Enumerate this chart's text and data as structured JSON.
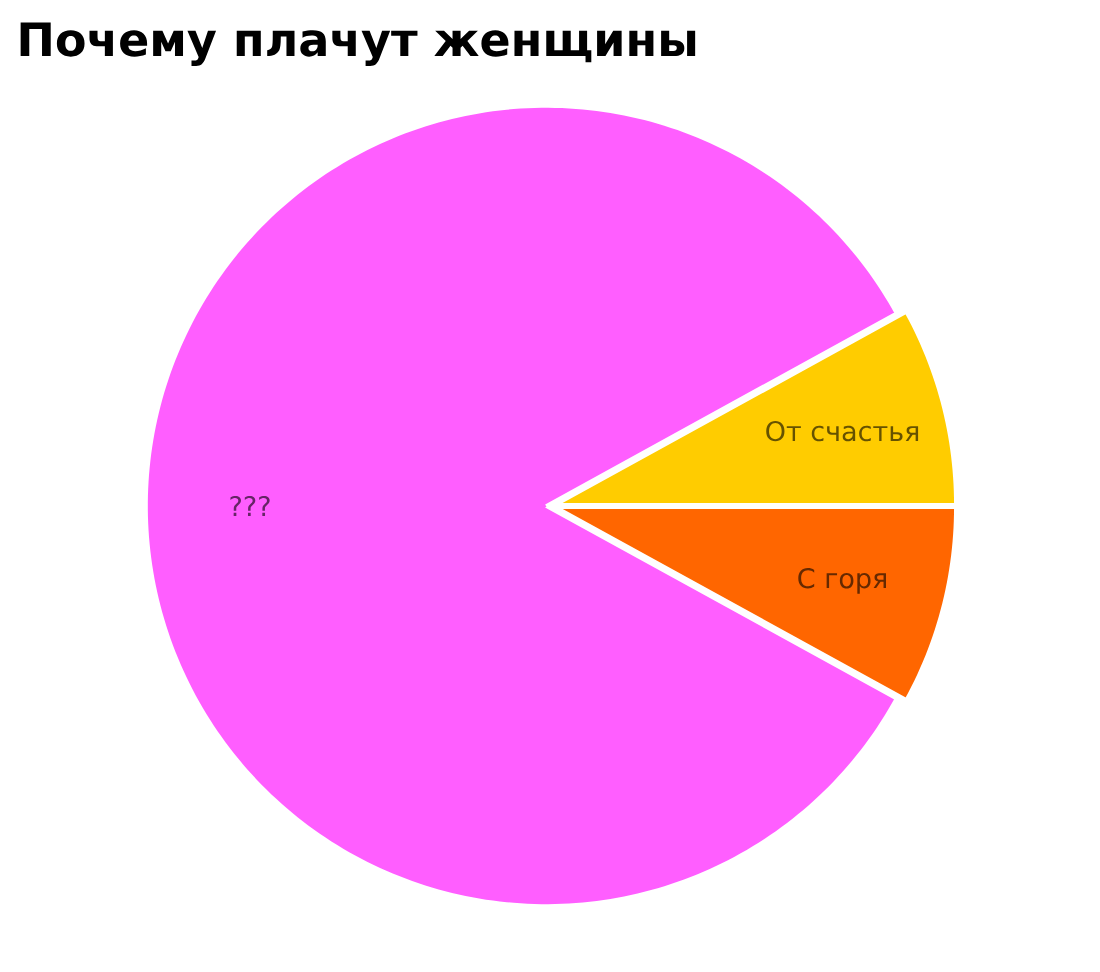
{
  "chart_data": {
    "type": "pie",
    "title": "Почему плачут женщины",
    "categories": [
      "От счастья",
      "???",
      "С горя"
    ],
    "values": [
      8,
      84,
      8
    ],
    "colors": [
      "#ffcc00",
      "#ff5eff",
      "#ff6600"
    ]
  }
}
